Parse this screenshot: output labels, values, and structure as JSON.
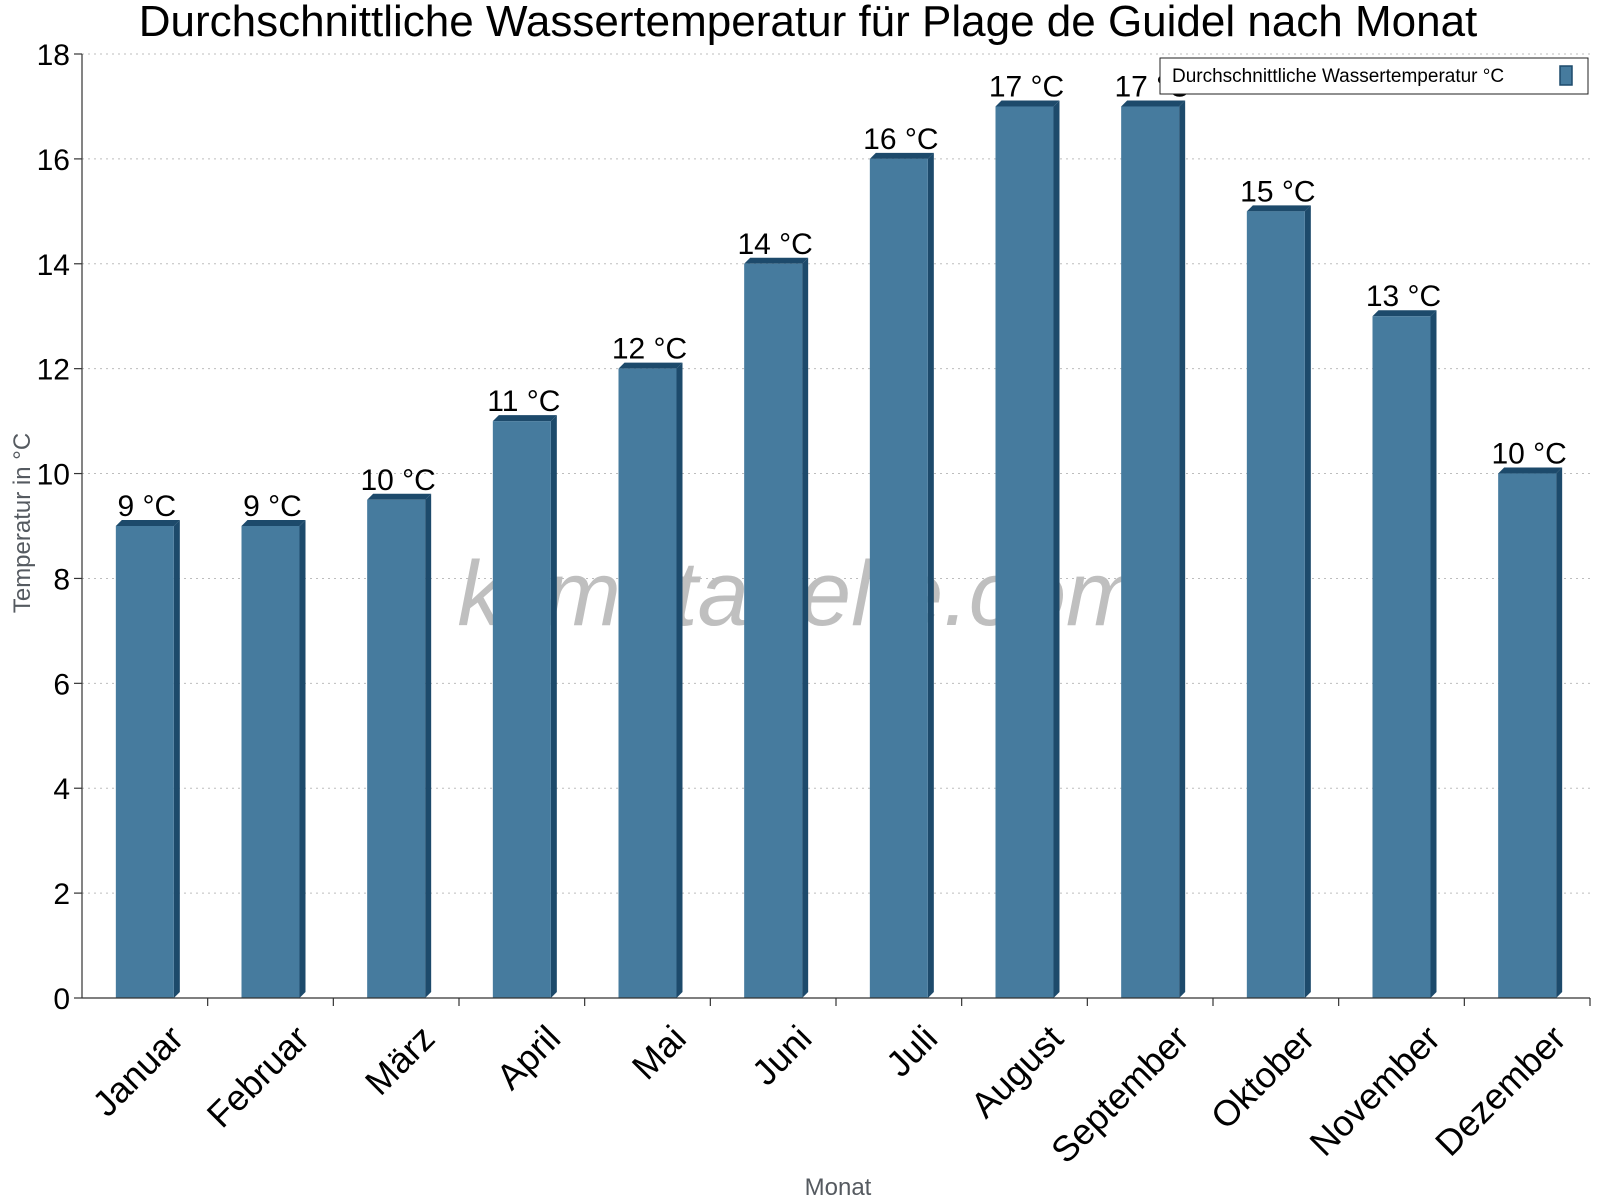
{
  "chart_data": {
    "type": "bar",
    "title": "Durchschnittliche Wassertemperatur für Plage de Guidel nach Monat",
    "xlabel": "Monat",
    "ylabel": "Temperatur in °C",
    "ylim": [
      0,
      18
    ],
    "y_ticks": [
      0,
      2,
      4,
      6,
      8,
      10,
      12,
      14,
      16,
      18
    ],
    "grid": true,
    "legend_position": "top-right",
    "categories": [
      "Januar",
      "Februar",
      "März",
      "April",
      "Mai",
      "Juni",
      "Juli",
      "August",
      "September",
      "Oktober",
      "November",
      "Dezember"
    ],
    "series": [
      {
        "name": "Durchschnittliche Wassertemperatur °C",
        "values": [
          9,
          9,
          9.5,
          11,
          12,
          14,
          16,
          17,
          17,
          15,
          13,
          10
        ],
        "labels": [
          "9 °C",
          "9 °C",
          "10 °C",
          "11 °C",
          "12 °C",
          "14 °C",
          "16 °C",
          "17 °C",
          "17 °C",
          "15 °C",
          "13 °C",
          "10 °C"
        ],
        "color": "#467b9e",
        "edge_color": "#1d4a6b"
      }
    ]
  },
  "watermark": "klimatabelle.com"
}
